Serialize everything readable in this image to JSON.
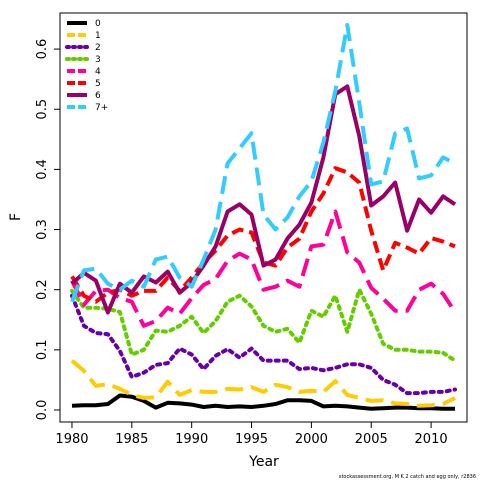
{
  "chart_data": {
    "type": "line",
    "xlabel": "Year",
    "ylabel": "F",
    "xlim": [
      1979,
      2013
    ],
    "ylim": [
      -0.02,
      0.66
    ],
    "xticks": [
      1980,
      1985,
      1990,
      1995,
      2000,
      2005,
      2010
    ],
    "yticks": [
      0.0,
      0.1,
      0.2,
      0.3,
      0.4,
      0.5,
      0.6
    ],
    "ytick_labels": [
      "0.0",
      "0.1",
      "0.2",
      "0.3",
      "0.4",
      "0.5",
      "0.6"
    ],
    "grid": false,
    "legend_position": "top-left",
    "footnote": "stockassessment.org, M K 2 catch and egg only, r2836",
    "x": [
      1980,
      1981,
      1982,
      1983,
      1984,
      1985,
      1986,
      1987,
      1988,
      1989,
      1990,
      1991,
      1992,
      1993,
      1994,
      1995,
      1996,
      1997,
      1998,
      1999,
      2000,
      2001,
      2002,
      2003,
      2004,
      2005,
      2006,
      2007,
      2008,
      2009,
      2010,
      2011,
      2012
    ],
    "series": [
      {
        "name": "0",
        "color": "#000000",
        "dash": "solid",
        "values": [
          0.007,
          0.008,
          0.008,
          0.01,
          0.024,
          0.022,
          0.015,
          0.004,
          0.012,
          0.011,
          0.009,
          0.005,
          0.007,
          0.005,
          0.006,
          0.005,
          0.007,
          0.01,
          0.016,
          0.016,
          0.015,
          0.006,
          0.007,
          0.006,
          0.004,
          0.002,
          0.003,
          0.004,
          0.004,
          0.003,
          0.003,
          0.002,
          0.002
        ]
      },
      {
        "name": "1",
        "color": "#ffcc00",
        "dash": "long",
        "values": [
          0.082,
          0.065,
          0.04,
          0.043,
          0.035,
          0.025,
          0.02,
          0.021,
          0.047,
          0.025,
          0.033,
          0.03,
          0.03,
          0.035,
          0.034,
          0.038,
          0.03,
          0.042,
          0.038,
          0.03,
          0.032,
          0.03,
          0.048,
          0.025,
          0.02,
          0.015,
          0.016,
          0.011,
          0.01,
          0.007,
          0.008,
          0.01,
          0.02
        ]
      },
      {
        "name": "2",
        "color": "#6600aa",
        "dash": "dot",
        "values": [
          0.19,
          0.14,
          0.128,
          0.126,
          0.098,
          0.055,
          0.062,
          0.075,
          0.078,
          0.102,
          0.092,
          0.068,
          0.09,
          0.101,
          0.087,
          0.102,
          0.082,
          0.082,
          0.082,
          0.068,
          0.07,
          0.066,
          0.07,
          0.076,
          0.076,
          0.07,
          0.05,
          0.042,
          0.028,
          0.028,
          0.03,
          0.03,
          0.034
        ]
      },
      {
        "name": "3",
        "color": "#66cc00",
        "dash": "dot",
        "values": [
          0.198,
          0.17,
          0.17,
          0.168,
          0.163,
          0.092,
          0.1,
          0.132,
          0.13,
          0.14,
          0.155,
          0.128,
          0.148,
          0.18,
          0.19,
          0.172,
          0.14,
          0.13,
          0.135,
          0.112,
          0.165,
          0.155,
          0.19,
          0.13,
          0.2,
          0.16,
          0.11,
          0.1,
          0.1,
          0.097,
          0.097,
          0.095,
          0.082
        ]
      },
      {
        "name": "4",
        "color": "#ff0099",
        "dash": "long",
        "values": [
          0.215,
          0.175,
          0.198,
          0.2,
          0.186,
          0.18,
          0.14,
          0.148,
          0.17,
          0.16,
          0.186,
          0.208,
          0.218,
          0.248,
          0.26,
          0.25,
          0.2,
          0.205,
          0.215,
          0.205,
          0.272,
          0.275,
          0.33,
          0.262,
          0.245,
          0.203,
          0.185,
          0.165,
          0.165,
          0.2,
          0.21,
          0.193,
          0.163
        ]
      },
      {
        "name": "5",
        "color": "#ff0000",
        "dash": "dash",
        "values": [
          0.222,
          0.19,
          0.18,
          0.195,
          0.2,
          0.19,
          0.198,
          0.198,
          0.22,
          0.198,
          0.22,
          0.245,
          0.265,
          0.29,
          0.3,
          0.295,
          0.245,
          0.24,
          0.27,
          0.285,
          0.33,
          0.36,
          0.402,
          0.395,
          0.378,
          0.298,
          0.232,
          0.278,
          0.27,
          0.26,
          0.286,
          0.28,
          0.272
        ]
      },
      {
        "name": "6",
        "color": "#990066",
        "dash": "solid",
        "values": [
          0.21,
          0.228,
          0.215,
          0.162,
          0.21,
          0.195,
          0.222,
          0.212,
          0.23,
          0.195,
          0.212,
          0.24,
          0.272,
          0.33,
          0.342,
          0.325,
          0.24,
          0.25,
          0.285,
          0.308,
          0.345,
          0.42,
          0.525,
          0.538,
          0.455,
          0.34,
          0.355,
          0.378,
          0.298,
          0.35,
          0.328,
          0.355,
          0.342
        ]
      },
      {
        "name": "7+",
        "color": "#33ccff",
        "dash": "long",
        "values": [
          0.18,
          0.232,
          0.235,
          0.21,
          0.2,
          0.215,
          0.205,
          0.25,
          0.255,
          0.22,
          0.205,
          0.25,
          0.3,
          0.41,
          0.435,
          0.46,
          0.325,
          0.3,
          0.32,
          0.355,
          0.38,
          0.445,
          0.53,
          0.64,
          0.51,
          0.375,
          0.38,
          0.46,
          0.468,
          0.385,
          0.39,
          0.42,
          0.41
        ]
      }
    ]
  }
}
